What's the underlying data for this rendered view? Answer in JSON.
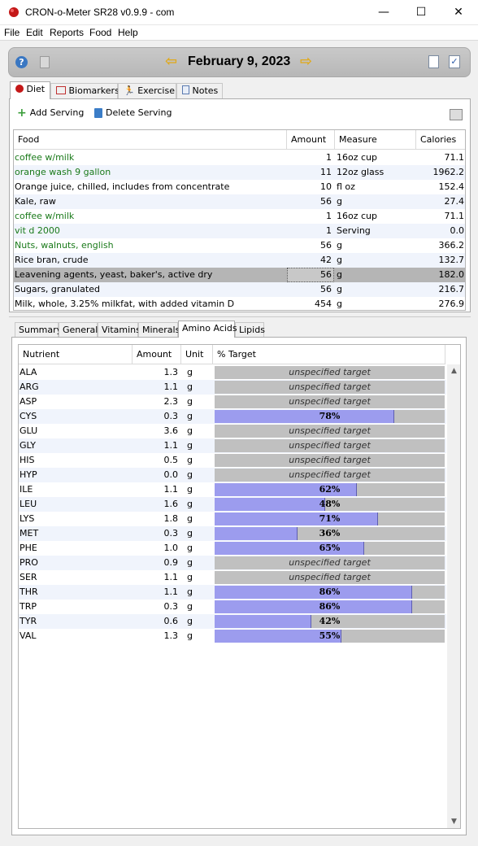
{
  "window": {
    "title": "CRON-o-Meter SR28 v0.9.9 - com",
    "minimize": "—",
    "maximize": "☐",
    "close": "✕"
  },
  "menu": [
    "File",
    "Edit",
    "Reports",
    "Food",
    "Help"
  ],
  "datebar": {
    "date": "February 9, 2023",
    "prev": "⇦",
    "next": "⇨"
  },
  "tabs": [
    "Diet",
    "Biomarkers",
    "Exercise",
    "Notes"
  ],
  "toolbar": {
    "add_serving": "Add Serving",
    "delete_serving": "Delete Serving"
  },
  "food_table": {
    "headers": [
      "Food",
      "Amount",
      "Measure",
      "Calories"
    ],
    "rows": [
      {
        "food": "coffee w/milk",
        "amount": "1",
        "measure": "16oz cup",
        "calories": "71.1",
        "custom": true
      },
      {
        "food": "orange wash 9 gallon",
        "amount": "11",
        "measure": "12oz glass",
        "calories": "1962.2",
        "custom": true
      },
      {
        "food": "Orange juice, chilled, includes from concentrate",
        "amount": "10",
        "measure": "fl oz",
        "calories": "152.4",
        "custom": false
      },
      {
        "food": "Kale, raw",
        "amount": "56",
        "measure": "g",
        "calories": "27.4",
        "custom": false
      },
      {
        "food": "coffee w/milk",
        "amount": "1",
        "measure": "16oz cup",
        "calories": "71.1",
        "custom": true
      },
      {
        "food": "vit d 2000",
        "amount": "1",
        "measure": "Serving",
        "calories": "0.0",
        "custom": true
      },
      {
        "food": "Nuts, walnuts, english",
        "amount": "56",
        "measure": "g",
        "calories": "366.2",
        "custom": true
      },
      {
        "food": "Rice bran, crude",
        "amount": "42",
        "measure": "g",
        "calories": "132.7",
        "custom": false
      },
      {
        "food": "Leavening agents, yeast, baker's, active dry",
        "amount": "56",
        "measure": "g",
        "calories": "182.0",
        "custom": false,
        "selected": true
      },
      {
        "food": "Sugars, granulated",
        "amount": "56",
        "measure": "g",
        "calories": "216.7",
        "custom": false
      },
      {
        "food": "Milk, whole, 3.25% milkfat, with added vitamin D",
        "amount": "454",
        "measure": "g",
        "calories": "276.9",
        "custom": false
      }
    ]
  },
  "nutrient_tabs": [
    "Summary",
    "General",
    "Vitamins",
    "Minerals",
    "Amino Acids",
    "Lipids"
  ],
  "nutrient_table": {
    "headers": [
      "Nutrient",
      "Amount",
      "Unit",
      "% Target"
    ],
    "unspecified_label": "unspecified target",
    "rows": [
      {
        "nutrient": "ALA",
        "amount": "1.3",
        "unit": "g",
        "pct": null
      },
      {
        "nutrient": "ARG",
        "amount": "1.1",
        "unit": "g",
        "pct": null
      },
      {
        "nutrient": "ASP",
        "amount": "2.3",
        "unit": "g",
        "pct": null
      },
      {
        "nutrient": "CYS",
        "amount": "0.3",
        "unit": "g",
        "pct": 78
      },
      {
        "nutrient": "GLU",
        "amount": "3.6",
        "unit": "g",
        "pct": null
      },
      {
        "nutrient": "GLY",
        "amount": "1.1",
        "unit": "g",
        "pct": null
      },
      {
        "nutrient": "HIS",
        "amount": "0.5",
        "unit": "g",
        "pct": null
      },
      {
        "nutrient": "HYP",
        "amount": "0.0",
        "unit": "g",
        "pct": null
      },
      {
        "nutrient": "ILE",
        "amount": "1.1",
        "unit": "g",
        "pct": 62
      },
      {
        "nutrient": "LEU",
        "amount": "1.6",
        "unit": "g",
        "pct": 48
      },
      {
        "nutrient": "LYS",
        "amount": "1.8",
        "unit": "g",
        "pct": 71
      },
      {
        "nutrient": "MET",
        "amount": "0.3",
        "unit": "g",
        "pct": 36
      },
      {
        "nutrient": "PHE",
        "amount": "1.0",
        "unit": "g",
        "pct": 65
      },
      {
        "nutrient": "PRO",
        "amount": "0.9",
        "unit": "g",
        "pct": null
      },
      {
        "nutrient": "SER",
        "amount": "1.1",
        "unit": "g",
        "pct": null
      },
      {
        "nutrient": "THR",
        "amount": "1.1",
        "unit": "g",
        "pct": 86
      },
      {
        "nutrient": "TRP",
        "amount": "0.3",
        "unit": "g",
        "pct": 86
      },
      {
        "nutrient": "TYR",
        "amount": "0.6",
        "unit": "g",
        "pct": 42
      },
      {
        "nutrient": "VAL",
        "amount": "1.3",
        "unit": "g",
        "pct": 55
      }
    ]
  },
  "colors": {
    "custom_food": "#1a7a1a",
    "bar_fill": "#9c9cee",
    "bar_track": "#c0c0c0",
    "selected_row": "#b5b5b5"
  }
}
